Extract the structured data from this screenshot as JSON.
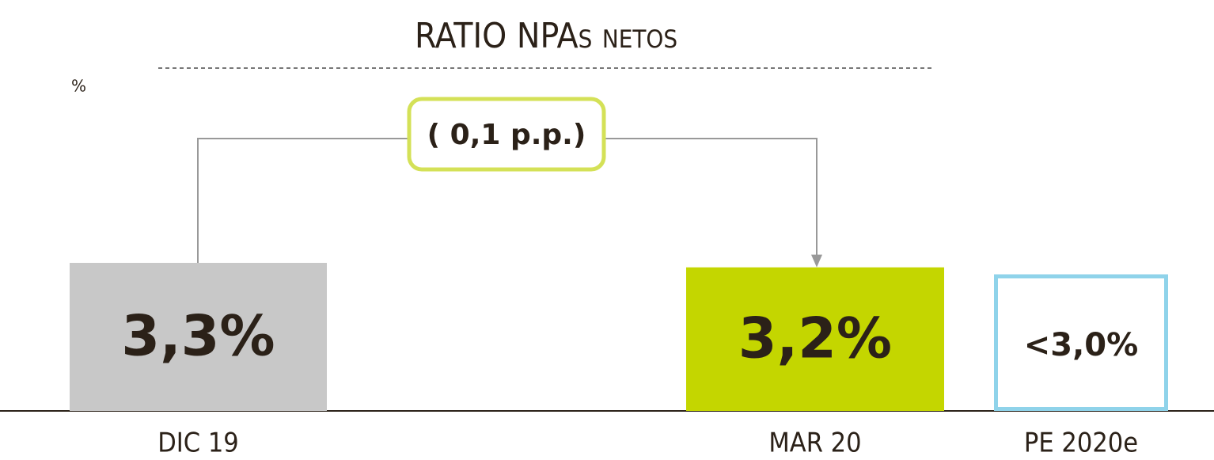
{
  "chart_data": {
    "type": "bar",
    "title": "RATIO NPAs netos",
    "unit_label": "%",
    "categories": [
      "DIC 19",
      "MAR 20",
      "PE 2020e"
    ],
    "values": [
      3.3,
      3.2,
      3.0
    ],
    "value_labels": [
      "3,3%",
      "3,2%",
      "<3,0%"
    ],
    "colors": [
      "#c8c8c8",
      "#c4d600",
      "#8fd3ea"
    ],
    "outline": [
      false,
      false,
      true
    ],
    "annotation": "( 0,1 p.p.)"
  }
}
